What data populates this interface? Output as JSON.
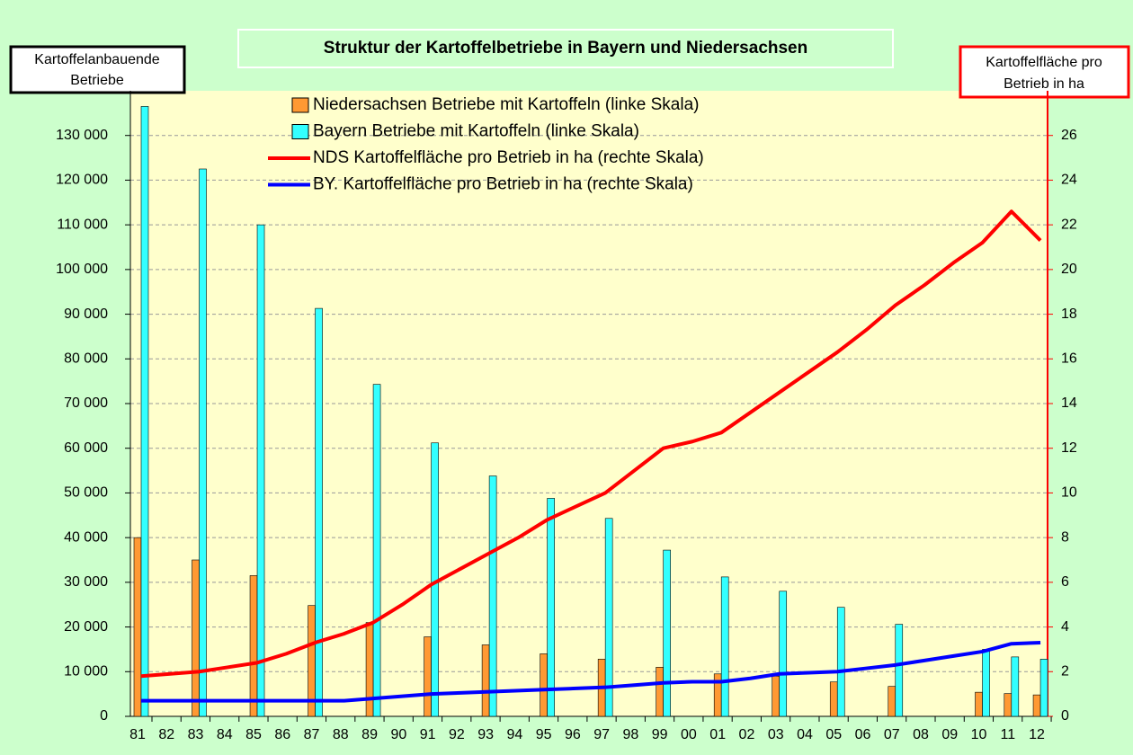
{
  "chart_data": {
    "type": "bar_line",
    "title": "Struktur der Kartoffelbetriebe in Bayern und Niedersachsen",
    "y_label": [
      "Kartoffelanbauende",
      "Betriebe"
    ],
    "y2_label": [
      "Kartoffelfläche pro",
      "Betrieb in ha"
    ],
    "categories": [
      "81",
      "82",
      "83",
      "84",
      "85",
      "86",
      "87",
      "88",
      "89",
      "90",
      "91",
      "92",
      "93",
      "94",
      "95",
      "96",
      "97",
      "98",
      "99",
      "00",
      "01",
      "02",
      "03",
      "04",
      "05",
      "06",
      "07",
      "08",
      "09",
      "10",
      "11",
      "12"
    ],
    "ylim": [
      0,
      140000
    ],
    "yticks": [
      0,
      {
        "value": 10000,
        "label": "10 000"
      },
      {
        "value": 20000,
        "label": "20 000"
      },
      {
        "value": 30000,
        "label": "30 000"
      },
      {
        "value": 40000,
        "label": "40 000"
      },
      {
        "value": 50000,
        "label": "50 000"
      },
      {
        "value": 60000,
        "label": "60 000"
      },
      {
        "value": 70000,
        "label": "70 000"
      },
      {
        "value": 80000,
        "label": "80 000"
      },
      {
        "value": 90000,
        "label": "90 000"
      },
      {
        "value": 100000,
        "label": "100 000"
      },
      {
        "value": 110000,
        "label": "110 000"
      },
      {
        "value": 120000,
        "label": "120 000"
      },
      {
        "value": 130000,
        "label": "130 000"
      }
    ],
    "y2lim": [
      0,
      28
    ],
    "y2ticks": [
      0,
      2,
      4,
      6,
      8,
      10,
      12,
      14,
      16,
      18,
      20,
      22,
      24,
      26
    ],
    "grid": true,
    "series": [
      {
        "name": "Niedersachsen Betriebe mit Kartoffeln (linke Skala)",
        "type": "bar",
        "color": "#ff9933",
        "values": [
          40000,
          null,
          35000,
          null,
          31500,
          null,
          24800,
          null,
          21000,
          null,
          17800,
          null,
          16000,
          null,
          14000,
          null,
          12800,
          null,
          11000,
          null,
          9500,
          null,
          9000,
          null,
          7700,
          null,
          6700,
          null,
          null,
          5400,
          5100,
          4800
        ]
      },
      {
        "name": "Bayern Betriebe mit Kartoffeln (linke Skala)",
        "type": "bar",
        "color": "#33ffff",
        "values": [
          136500,
          null,
          122500,
          null,
          110000,
          null,
          91300,
          null,
          74300,
          null,
          61200,
          null,
          53800,
          null,
          48800,
          null,
          44300,
          null,
          37200,
          null,
          31200,
          null,
          28000,
          null,
          24400,
          null,
          20600,
          null,
          null,
          15000,
          13300,
          12800
        ]
      },
      {
        "name": "NDS Kartoffelfläche pro Betrieb in ha (rechte Skala)",
        "type": "line",
        "axis": "y2",
        "color": "#ff0000",
        "values": [
          1.8,
          1.9,
          2.0,
          2.2,
          2.4,
          2.8,
          3.3,
          3.7,
          4.2,
          5.0,
          5.9,
          6.6,
          7.3,
          8.0,
          8.8,
          9.4,
          10.0,
          11.0,
          12.0,
          12.3,
          12.7,
          13.6,
          14.5,
          15.4,
          16.3,
          17.3,
          18.4,
          19.3,
          20.3,
          21.2,
          22.6,
          21.3
        ]
      },
      {
        "name": "BY. Kartoffelfläche pro Betrieb in ha (rechte Skala)",
        "type": "line",
        "axis": "y2",
        "color": "#0000ff",
        "values": [
          0.7,
          0.7,
          0.7,
          0.7,
          0.7,
          0.7,
          0.7,
          0.7,
          0.8,
          0.9,
          1.0,
          1.05,
          1.1,
          1.15,
          1.2,
          1.25,
          1.3,
          1.4,
          1.5,
          1.55,
          1.55,
          1.7,
          1.9,
          1.95,
          2.0,
          2.15,
          2.3,
          2.5,
          2.7,
          2.9,
          3.25,
          3.3
        ]
      }
    ]
  }
}
